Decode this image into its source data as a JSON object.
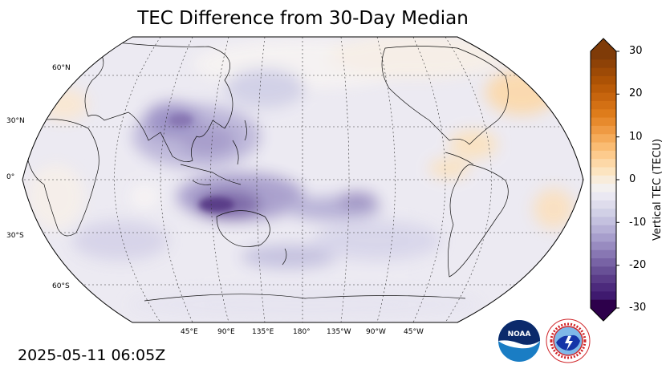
{
  "title": "TEC Difference from 30-Day Median",
  "timestamp": "2025-05-11 06:05Z",
  "colorbar": {
    "label": "Vertical TEC (TECU)",
    "ticks": [
      "30",
      "20",
      "10",
      "0",
      "-10",
      "-20",
      "-30"
    ],
    "colors": [
      "#7f3b08",
      "#8e4207",
      "#9d4a06",
      "#ac5205",
      "#ba5b08",
      "#c7650e",
      "#d37014",
      "#de7c1b",
      "#e78a2d",
      "#ef9a43",
      "#f5ab5a",
      "#fabc73",
      "#fdcb8d",
      "#fdd8a7",
      "#fce4c0",
      "#f8ecdb",
      "#f3f0ef",
      "#eae8f2",
      "#dedcec",
      "#d1d0e6",
      "#c4c1df",
      "#b6b0d6",
      "#a79ecc",
      "#988bc0",
      "#8877b3",
      "#7863a5",
      "#685096",
      "#5a3c88",
      "#4c2a7c",
      "#3f1a6f",
      "#2d004b"
    ]
  },
  "map": {
    "lat_labels": [
      "60°N",
      "30°N",
      "0°",
      "30°S",
      "60°S"
    ],
    "lon_labels": [
      "45°E",
      "90°E",
      "135°E",
      "180°",
      "135°W",
      "90°W",
      "45°W"
    ]
  },
  "logos": {
    "noaa": "NOAA",
    "nws": "NATIONAL WEATHER SERVICE"
  }
}
